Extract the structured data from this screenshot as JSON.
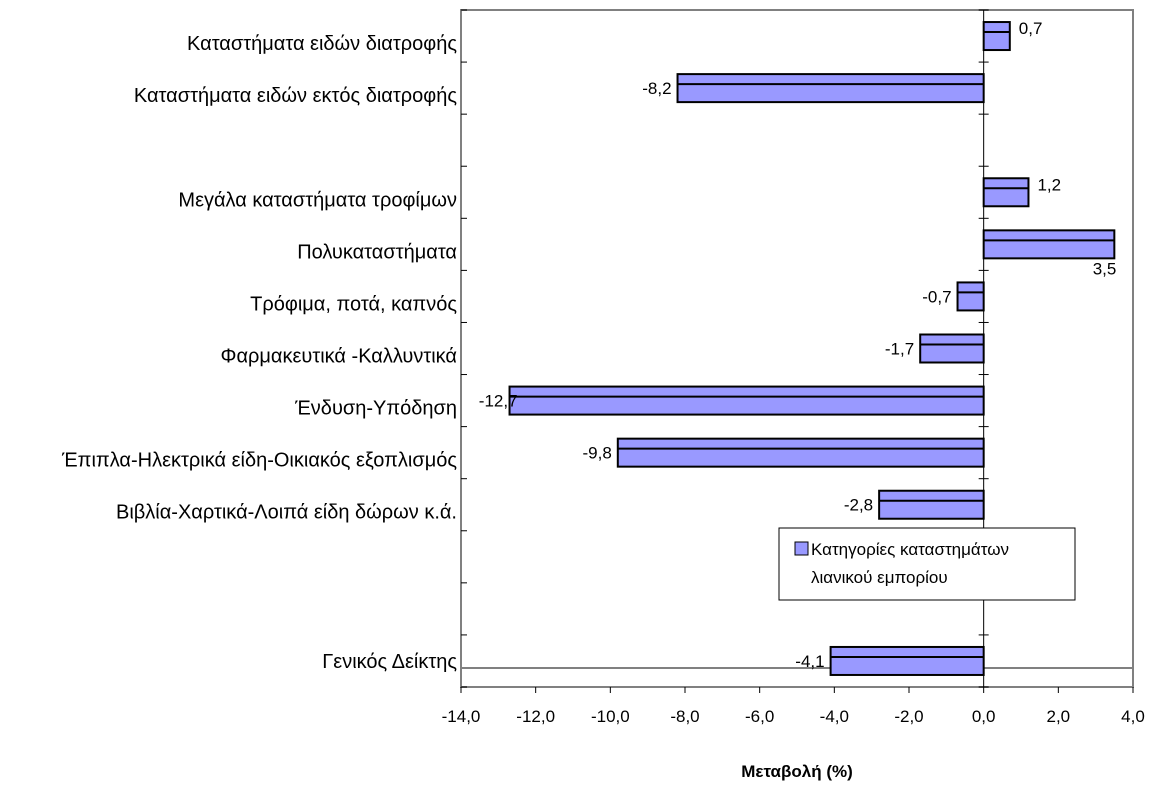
{
  "chart_data": {
    "type": "bar",
    "orientation": "horizontal",
    "title": "",
    "xlabel": "Μεταβολή (%)",
    "ylabel": "",
    "xlim": [
      -14.0,
      4.0
    ],
    "xticks": [
      "-14,0",
      "-12,0",
      "-10,0",
      "-8,0",
      "-6,0",
      "-4,0",
      "-2,0",
      "0,0",
      "2,0",
      "4,0"
    ],
    "xtick_values": [
      -14,
      -12,
      -10,
      -8,
      -6,
      -4,
      -2,
      0,
      2,
      4
    ],
    "grid": false,
    "legend": {
      "position": "bottom-right",
      "line1": "Κατηγορίες καταστημάτων",
      "line2": "λιανικού εμπορίου"
    },
    "bar_color": "#9999FF",
    "series": [
      {
        "categories": [
          "Καταστήματα ειδών διατροφής",
          "Καταστήματα ειδών  εκτός διατροφής",
          "",
          "Μεγάλα καταστήματα τροφίμων",
          "Πολυκαταστήματα",
          "Τρόφιμα, ποτά, καπνός",
          "Φαρμακευτικά -Καλλυντικά",
          "Ένδυση-Υπόδηση",
          "Έπιπλα-Ηλεκτρικά είδη-Οικιακός εξοπλισμός",
          "Βιβλία-Χαρτικά-Λοιπά είδη δώρων κ.ά.",
          "",
          "",
          "Γενικός Δείκτης"
        ],
        "values": [
          0.7,
          -8.2,
          null,
          1.2,
          3.5,
          -0.7,
          -1.7,
          -12.7,
          -9.8,
          -2.8,
          null,
          null,
          -4.1
        ],
        "value_labels": [
          "0,7",
          "-8,2",
          "",
          "1,2",
          "3,5",
          "-0,7",
          "-1,7",
          "-12,7",
          "-9,8",
          "-2,8",
          "",
          "",
          "-4,1"
        ]
      }
    ]
  }
}
